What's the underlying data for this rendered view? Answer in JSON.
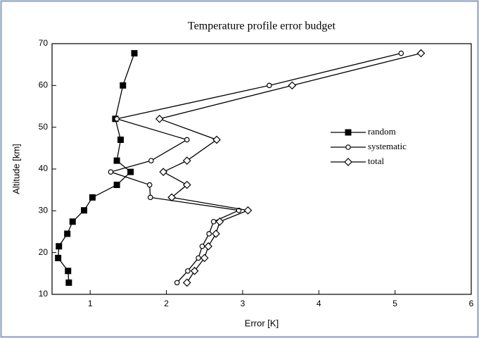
{
  "chart_data": {
    "type": "line",
    "title": "Temperature profile error budget",
    "x_label": "Error [K]",
    "y_label": "Altitude [km]",
    "xlim": [
      0.5,
      6
    ],
    "xticks": [
      1,
      2,
      3,
      4,
      5,
      6
    ],
    "ylim": [
      10,
      70
    ],
    "yticks": [
      10,
      20,
      30,
      40,
      50,
      60,
      70
    ],
    "legend": "right",
    "y": [
      67.7,
      60,
      52,
      47,
      42,
      39.3,
      36.2,
      33.2,
      30.1,
      27.4,
      24.5,
      21.5,
      18.7,
      15.6,
      12.8
    ],
    "series": [
      {
        "name": "random",
        "color": "#000000",
        "marker": "square",
        "x": [
          1.58,
          1.43,
          1.33,
          1.4,
          1.35,
          1.53,
          1.35,
          1.03,
          0.92,
          0.77,
          0.7,
          0.59,
          0.58,
          0.71,
          0.72
        ]
      },
      {
        "name": "systematic",
        "color": "#000000",
        "marker": "circle",
        "x": [
          5.08,
          3.35,
          1.35,
          2.27,
          1.8,
          1.27,
          1.78,
          1.79,
          2.95,
          2.62,
          2.56,
          2.47,
          2.42,
          2.28,
          2.14
        ]
      },
      {
        "name": "total",
        "color": "#000000",
        "marker": "diamond",
        "x": [
          5.34,
          3.65,
          1.91,
          2.66,
          2.27,
          1.96,
          2.27,
          2.07,
          3.07,
          2.7,
          2.65,
          2.55,
          2.5,
          2.37,
          2.27
        ]
      }
    ]
  }
}
